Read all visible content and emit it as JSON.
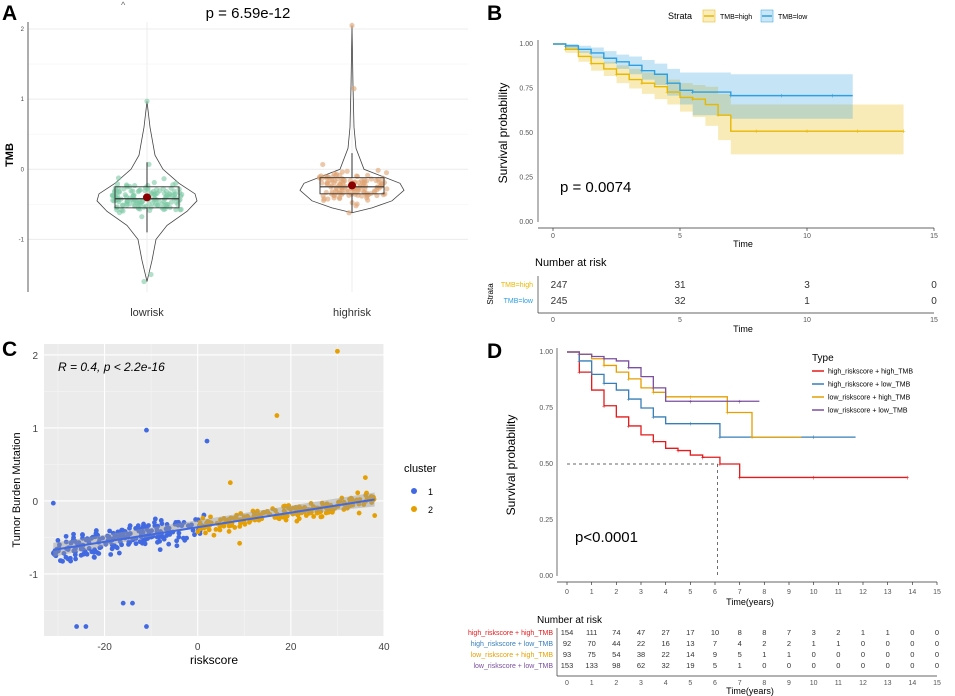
{
  "panel_labels": [
    "A",
    "B",
    "C",
    "D"
  ],
  "chart_data": [
    {
      "panel": "A",
      "type": "violin-boxplot",
      "title": "p = 6.59e-12",
      "xlabel": "",
      "ylabel": "TMB",
      "ylim": [
        -1.75,
        2.1
      ],
      "yticks": [
        -1,
        0,
        1,
        2
      ],
      "categories": [
        "lowrisk",
        "highrisk"
      ],
      "colors": [
        "#7dc9a5",
        "#e0a373"
      ],
      "mean_color": "#8b0000",
      "groups": [
        {
          "name": "lowrisk",
          "median": -0.42,
          "q1": -0.55,
          "q3": -0.25,
          "whisker_low": -1.6,
          "whisker_high": 0.97,
          "mean": -0.4,
          "n_points": 150
        },
        {
          "name": "highrisk",
          "median": -0.25,
          "q1": -0.35,
          "q3": -0.12,
          "whisker_low": -0.62,
          "whisker_high": 2.05,
          "mean": -0.23,
          "n_points": 130
        }
      ]
    },
    {
      "panel": "B",
      "type": "line",
      "subtype": "kaplan-meier",
      "title": "",
      "xlabel": "Time",
      "ylabel": "Survival probability",
      "xlim": [
        0,
        15
      ],
      "ylim": [
        0,
        1
      ],
      "xticks": [
        0,
        5,
        10,
        15
      ],
      "yticks": [
        "0.00",
        "0.25",
        "0.50",
        "0.75",
        "1.00"
      ],
      "legend_title": "Strata",
      "pvalue": "p = 0.0074",
      "series": [
        {
          "name": "TMB=high",
          "color": "#e7b800",
          "x": [
            0,
            0.5,
            1,
            1.5,
            2,
            2.5,
            3,
            3.5,
            4,
            4.5,
            5,
            5.5,
            6,
            6.5,
            7,
            8,
            9,
            10,
            11,
            12,
            13,
            13.8
          ],
          "y": [
            1,
            0.97,
            0.93,
            0.89,
            0.86,
            0.83,
            0.8,
            0.78,
            0.76,
            0.73,
            0.7,
            0.69,
            0.66,
            0.6,
            0.51,
            0.51,
            0.51,
            0.51,
            0.51,
            0.51,
            0.51,
            0.51
          ],
          "ci_low": [
            1,
            0.95,
            0.9,
            0.85,
            0.82,
            0.78,
            0.75,
            0.72,
            0.69,
            0.66,
            0.62,
            0.59,
            0.54,
            0.46,
            0.38,
            0.38,
            0.38,
            0.38,
            0.38,
            0.38,
            0.38,
            0.38
          ],
          "ci_high": [
            1,
            0.99,
            0.96,
            0.93,
            0.9,
            0.88,
            0.86,
            0.84,
            0.83,
            0.8,
            0.78,
            0.77,
            0.76,
            0.72,
            0.66,
            0.66,
            0.66,
            0.66,
            0.66,
            0.66,
            0.66,
            0.66
          ]
        },
        {
          "name": "TMB=low",
          "color": "#2e9fdf",
          "x": [
            0,
            0.5,
            1,
            1.5,
            2,
            2.5,
            3,
            3.5,
            4,
            4.5,
            5,
            5.5,
            6,
            7,
            8,
            9,
            10,
            11,
            11.8
          ],
          "y": [
            1,
            0.99,
            0.97,
            0.95,
            0.92,
            0.9,
            0.88,
            0.85,
            0.83,
            0.78,
            0.74,
            0.73,
            0.73,
            0.71,
            0.71,
            0.71,
            0.71,
            0.71,
            0.71
          ],
          "ci_low": [
            1,
            0.97,
            0.95,
            0.92,
            0.89,
            0.86,
            0.83,
            0.8,
            0.77,
            0.71,
            0.66,
            0.6,
            0.6,
            0.58,
            0.58,
            0.58,
            0.58,
            0.58,
            0.58
          ],
          "ci_high": [
            1,
            1,
            0.99,
            0.98,
            0.96,
            0.94,
            0.93,
            0.91,
            0.89,
            0.86,
            0.84,
            0.84,
            0.84,
            0.83,
            0.83,
            0.83,
            0.83,
            0.83,
            0.83
          ]
        }
      ],
      "risk_table": {
        "title": "Number at risk",
        "xlabel": "Time",
        "ylabel": "Strata",
        "times": [
          0,
          5,
          10,
          15
        ],
        "rows": [
          {
            "name": "TMB=high",
            "color": "#e7b800",
            "values": [
              "247",
              "31",
              "3",
              "0"
            ]
          },
          {
            "name": "TMB=low",
            "color": "#2e9fdf",
            "values": [
              "245",
              "32",
              "1",
              "0"
            ]
          }
        ]
      }
    },
    {
      "panel": "C",
      "type": "scatter",
      "title": "",
      "annotation": "R = 0.4, p < 2.2e-16",
      "xlabel": "riskscore",
      "ylabel": "Tumor Burden Mutation",
      "xlim": [
        -33,
        40
      ],
      "ylim": [
        -1.85,
        2.15
      ],
      "xticks": [
        -20,
        0,
        20,
        40
      ],
      "yticks": [
        -1,
        0,
        1,
        2
      ],
      "legend_title": "cluster",
      "regression": {
        "x": [
          -31,
          38
        ],
        "y": [
          -0.67,
          0.02
        ],
        "band": 0.06,
        "color": "#4169e1"
      },
      "series": [
        {
          "name": "1",
          "color": "#4169e1",
          "x_range": [
            -31,
            2
          ],
          "n_points": 220,
          "highlights": {
            "x": [
              -11,
              2,
              -24,
              -26,
              -16,
              -14,
              -11,
              -31
            ],
            "y": [
              0.97,
              0.82,
              -1.72,
              -1.72,
              -1.4,
              -1.4,
              -1.72,
              -0.03
            ]
          }
        },
        {
          "name": "2",
          "color": "#e69f00",
          "x_range": [
            0,
            38
          ],
          "n_points": 200,
          "highlights": {
            "x": [
              30,
              17,
              36,
              38,
              7,
              9
            ],
            "y": [
              2.05,
              1.17,
              0.32,
              -0.2,
              0.25,
              -0.58
            ]
          }
        }
      ]
    },
    {
      "panel": "D",
      "type": "line",
      "subtype": "kaplan-meier",
      "title": "",
      "xlabel": "Time(years)",
      "ylabel": "Survival probability",
      "xlim": [
        0,
        15
      ],
      "ylim": [
        0,
        1
      ],
      "xticks": [
        0,
        1,
        2,
        3,
        4,
        5,
        6,
        7,
        8,
        9,
        10,
        11,
        12,
        13,
        14,
        15
      ],
      "yticks": [
        "0.00",
        "0.25",
        "0.50",
        "0.75",
        "1.00"
      ],
      "legend_title": "Type",
      "pvalue": "p<0.0001",
      "median_line": {
        "x": 6.1,
        "y": 0.5
      },
      "series": [
        {
          "name": "high_riskscore + high_TMB",
          "color": "#e41a1c",
          "x": [
            0,
            0.5,
            1,
            1.5,
            2,
            2.5,
            3,
            3.5,
            4,
            4.5,
            5,
            5.5,
            6,
            6.2,
            6.5,
            7,
            8,
            10,
            12,
            13.8
          ],
          "y": [
            1,
            0.91,
            0.83,
            0.76,
            0.71,
            0.67,
            0.63,
            0.6,
            0.57,
            0.56,
            0.54,
            0.53,
            0.53,
            0.5,
            0.5,
            0.44,
            0.44,
            0.44,
            0.44,
            0.44
          ]
        },
        {
          "name": "high_riskscore + low_TMB",
          "color": "#377eb8",
          "x": [
            0,
            0.5,
            1,
            1.5,
            2,
            2.5,
            3,
            3.5,
            4,
            5,
            6,
            6.2,
            8,
            10,
            11.7
          ],
          "y": [
            1,
            0.96,
            0.9,
            0.86,
            0.83,
            0.79,
            0.75,
            0.71,
            0.68,
            0.68,
            0.68,
            0.62,
            0.62,
            0.62,
            0.62
          ]
        },
        {
          "name": "low_riskscore + high_TMB",
          "color": "#e69f00",
          "x": [
            0,
            0.5,
            1,
            1.5,
            2,
            2.5,
            3,
            3.5,
            4,
            5,
            6,
            6.5,
            7,
            7.5,
            9.5
          ],
          "y": [
            1,
            0.99,
            0.97,
            0.94,
            0.91,
            0.88,
            0.84,
            0.82,
            0.8,
            0.8,
            0.8,
            0.73,
            0.73,
            0.62,
            0.62
          ]
        },
        {
          "name": "low_riskscore + low_TMB",
          "color": "#7b4f9d",
          "x": [
            0,
            0.5,
            1,
            1.5,
            2,
            2.5,
            3,
            3.5,
            4,
            5,
            6,
            7,
            7.8
          ],
          "y": [
            1,
            0.99,
            0.98,
            0.97,
            0.96,
            0.93,
            0.89,
            0.84,
            0.78,
            0.78,
            0.78,
            0.78,
            0.78
          ]
        }
      ],
      "risk_table": {
        "title": "Number at risk",
        "xlabel": "Time(years)",
        "times": [
          0,
          1,
          2,
          3,
          4,
          5,
          6,
          7,
          8,
          9,
          10,
          11,
          12,
          13,
          14,
          15
        ],
        "rows": [
          {
            "name": "high_riskscore + high_TMB",
            "color": "#e41a1c",
            "values": [
              "154",
              "111",
              "74",
              "47",
              "27",
              "17",
              "10",
              "8",
              "8",
              "7",
              "3",
              "2",
              "1",
              "1",
              "0",
              "0"
            ]
          },
          {
            "name": "high_riskscore + low_TMB",
            "color": "#377eb8",
            "values": [
              "92",
              "70",
              "44",
              "22",
              "16",
              "13",
              "7",
              "4",
              "2",
              "2",
              "1",
              "1",
              "0",
              "0",
              "0",
              "0"
            ]
          },
          {
            "name": "low_riskscore + high_TMB",
            "color": "#e69f00",
            "values": [
              "93",
              "75",
              "54",
              "38",
              "22",
              "14",
              "9",
              "5",
              "1",
              "1",
              "0",
              "0",
              "0",
              "0",
              "0",
              "0"
            ]
          },
          {
            "name": "low_riskscore + low_TMB",
            "color": "#7b4f9d",
            "values": [
              "153",
              "133",
              "98",
              "62",
              "32",
              "19",
              "5",
              "1",
              "0",
              "0",
              "0",
              "0",
              "0",
              "0",
              "0",
              "0"
            ]
          }
        ]
      }
    }
  ]
}
